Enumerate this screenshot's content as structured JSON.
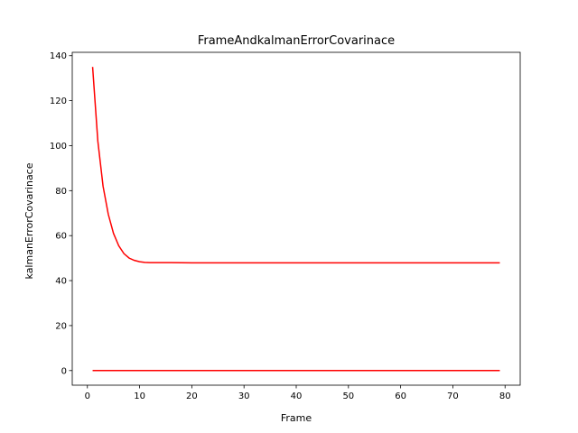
{
  "chart_data": {
    "type": "line",
    "title": "FrameAndkalmanErrorCovarinace",
    "xlabel": "Frame",
    "ylabel": "kalmanErrorCovarinace",
    "xlim": [
      -2.9,
      82.9
    ],
    "ylim": [
      -6.5,
      141.5
    ],
    "xticks": [
      0,
      10,
      20,
      30,
      40,
      50,
      60,
      70,
      80
    ],
    "yticks": [
      0,
      20,
      40,
      60,
      80,
      100,
      120,
      140
    ],
    "grid": false,
    "legend": "none",
    "line_color": "#ff0000",
    "series": [
      {
        "x": [
          1,
          2,
          3,
          4,
          5,
          6,
          7,
          8,
          9,
          10,
          11,
          12,
          14,
          16,
          20,
          30,
          40,
          50,
          60,
          70,
          79
        ],
        "values": [
          135,
          102,
          82,
          69.5,
          61,
          55.5,
          52,
          50,
          49,
          48.4,
          48.1,
          48.0,
          48.0,
          48.0,
          47.9,
          47.9,
          47.9,
          47.9,
          47.9,
          47.9,
          47.9
        ]
      },
      {
        "x": [
          1,
          10,
          20,
          30,
          40,
          50,
          60,
          70,
          79
        ],
        "values": [
          0,
          0,
          0,
          0,
          0,
          0,
          0,
          0,
          0
        ]
      }
    ]
  }
}
